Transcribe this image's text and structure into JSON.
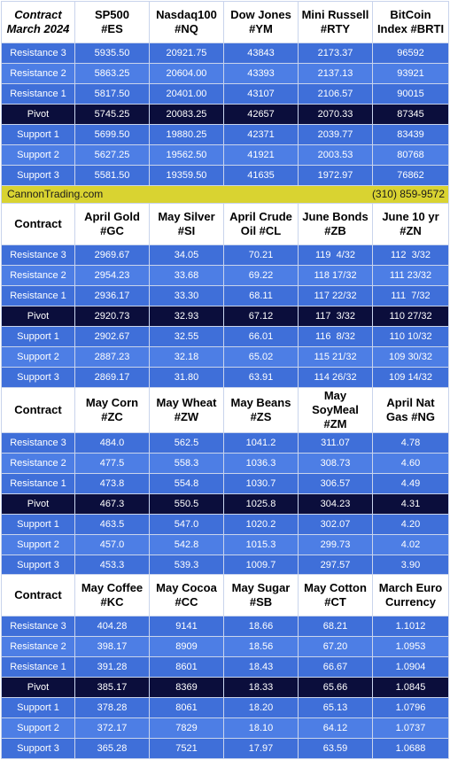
{
  "colors": {
    "row_light": "#4d7ee5",
    "row_dark": "#3f6fd9",
    "pivot": "#0b0e3c",
    "banner": "#d9d331",
    "header_bg": "#ffffff"
  },
  "row_labels": [
    "Resistance 3",
    "Resistance 2",
    "Resistance 1",
    "Pivot",
    "Support 1",
    "Support 2",
    "Support 3"
  ],
  "banner": {
    "site": "CannonTrading.com",
    "phone": "(310) 859-9572"
  },
  "sections": [
    {
      "label_lines": [
        "Contract",
        "March 2024"
      ],
      "columns": [
        {
          "lines": [
            "SP500",
            "#ES"
          ],
          "values": [
            "5935.50",
            "5863.25",
            "5817.50",
            "5745.25",
            "5699.50",
            "5627.25",
            "5581.50"
          ]
        },
        {
          "lines": [
            "Nasdaq100",
            "#NQ"
          ],
          "values": [
            "20921.75",
            "20604.00",
            "20401.00",
            "20083.25",
            "19880.25",
            "19562.50",
            "19359.50"
          ]
        },
        {
          "lines": [
            "Dow Jones",
            "#YM"
          ],
          "values": [
            "43843",
            "43393",
            "43107",
            "42657",
            "42371",
            "41921",
            "41635"
          ]
        },
        {
          "lines": [
            "Mini Russell",
            "#RTY"
          ],
          "values": [
            "2173.37",
            "2137.13",
            "2106.57",
            "2070.33",
            "2039.77",
            "2003.53",
            "1972.97"
          ]
        },
        {
          "lines": [
            "BitCoin",
            "Index #BRTI"
          ],
          "values": [
            "96592",
            "93921",
            "90015",
            "87345",
            "83439",
            "80768",
            "76862"
          ]
        }
      ]
    },
    {
      "label_lines": [
        "Contract"
      ],
      "columns": [
        {
          "lines": [
            "April Gold",
            "#GC"
          ],
          "values": [
            "2969.67",
            "2954.23",
            "2936.17",
            "2920.73",
            "2902.67",
            "2887.23",
            "2869.17"
          ]
        },
        {
          "lines": [
            "May Silver",
            "#SI"
          ],
          "values": [
            "34.05",
            "33.68",
            "33.30",
            "32.93",
            "32.55",
            "32.18",
            "31.80"
          ]
        },
        {
          "lines": [
            "April Crude",
            "Oil #CL"
          ],
          "values": [
            "70.21",
            "69.22",
            "68.11",
            "67.12",
            "66.01",
            "65.02",
            "63.91"
          ]
        },
        {
          "lines": [
            "June Bonds",
            "#ZB"
          ],
          "values": [
            "119  4/32",
            "118 17/32",
            "117 22/32",
            "117  3/32",
            "116  8/32",
            "115 21/32",
            "114 26/32"
          ]
        },
        {
          "lines": [
            "June 10 yr",
            "#ZN"
          ],
          "values": [
            "112  3/32",
            "111 23/32",
            "111  7/32",
            "110 27/32",
            "110 10/32",
            "109 30/32",
            "109 14/32"
          ]
        }
      ]
    },
    {
      "label_lines": [
        "Contract"
      ],
      "columns": [
        {
          "lines": [
            "May Corn",
            "#ZC"
          ],
          "values": [
            "484.0",
            "477.5",
            "473.8",
            "467.3",
            "463.5",
            "457.0",
            "453.3"
          ]
        },
        {
          "lines": [
            "May  Wheat",
            "#ZW"
          ],
          "values": [
            "562.5",
            "558.3",
            "554.8",
            "550.5",
            "547.0",
            "542.8",
            "539.3"
          ]
        },
        {
          "lines": [
            "May Beans",
            "#ZS"
          ],
          "values": [
            "1041.2",
            "1036.3",
            "1030.7",
            "1025.8",
            "1020.2",
            "1015.3",
            "1009.7"
          ]
        },
        {
          "lines": [
            "May",
            "SoyMeal",
            "#ZM"
          ],
          "values": [
            "311.07",
            "308.73",
            "306.57",
            "304.23",
            "302.07",
            "299.73",
            "297.57"
          ]
        },
        {
          "lines": [
            "April Nat",
            "Gas #NG"
          ],
          "values": [
            "4.78",
            "4.60",
            "4.49",
            "4.31",
            "4.20",
            "4.02",
            "3.90"
          ]
        }
      ]
    },
    {
      "label_lines": [
        "Contract"
      ],
      "columns": [
        {
          "lines": [
            "May Coffee",
            "#KC"
          ],
          "values": [
            "404.28",
            "398.17",
            "391.28",
            "385.17",
            "378.28",
            "372.17",
            "365.28"
          ]
        },
        {
          "lines": [
            "May Cocoa",
            "#CC"
          ],
          "values": [
            "9141",
            "8909",
            "8601",
            "8369",
            "8061",
            "7829",
            "7521"
          ]
        },
        {
          "lines": [
            "May Sugar",
            "#SB"
          ],
          "values": [
            "18.66",
            "18.56",
            "18.43",
            "18.33",
            "18.20",
            "18.10",
            "17.97"
          ]
        },
        {
          "lines": [
            "May Cotton",
            "#CT"
          ],
          "values": [
            "68.21",
            "67.20",
            "66.67",
            "65.66",
            "65.13",
            "64.12",
            "63.59"
          ]
        },
        {
          "lines": [
            "March Euro",
            "Currency"
          ],
          "values": [
            "1.1012",
            "1.0953",
            "1.0904",
            "1.0845",
            "1.0796",
            "1.0737",
            "1.0688"
          ]
        }
      ]
    }
  ]
}
